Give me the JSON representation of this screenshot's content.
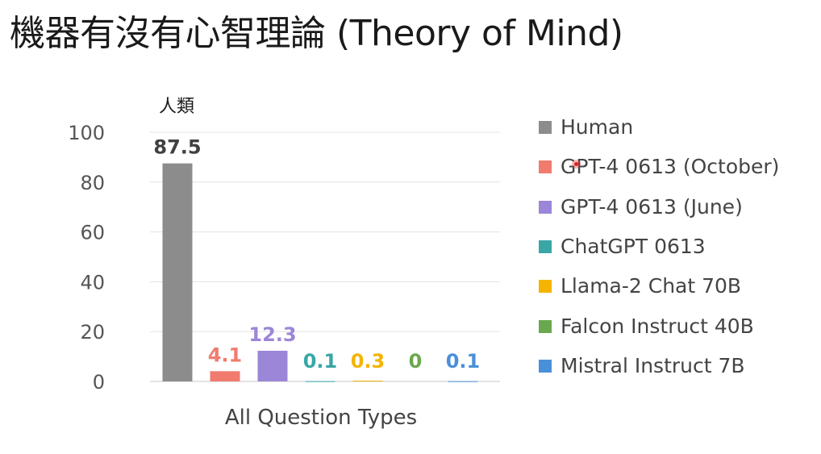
{
  "slide": {
    "title": "機器有沒有心智理論 (Theory of Mind)",
    "annotation": "人類"
  },
  "chart_data": {
    "type": "bar",
    "categories": [
      "All Question Types"
    ],
    "xlabel": "All Question Types",
    "ylabel": "",
    "ylim": [
      0,
      100
    ],
    "yticks": [
      0,
      20,
      40,
      60,
      80,
      100
    ],
    "grid": true,
    "legend_position": "right",
    "series": [
      {
        "name": "Human",
        "values": [
          87.5
        ],
        "label": "87.5",
        "color": "#8c8c8c",
        "label_color": "#404040"
      },
      {
        "name": "GPT-4 0613 (October)",
        "values": [
          4.1
        ],
        "label": "4.1",
        "color": "#f07b6e",
        "label_color": "#f07b6e"
      },
      {
        "name": "GPT-4 0613 (June)",
        "values": [
          12.3
        ],
        "label": "12.3",
        "color": "#9b86d8",
        "label_color": "#9b86d8"
      },
      {
        "name": "ChatGPT 0613",
        "values": [
          0.1
        ],
        "label": "0.1",
        "color": "#3aa6a6",
        "label_color": "#3aa6a6"
      },
      {
        "name": "Llama-2 Chat 70B",
        "values": [
          0.3
        ],
        "label": "0.3",
        "color": "#f4b400",
        "label_color": "#f4b400"
      },
      {
        "name": "Falcon Instruct 40B",
        "values": [
          0
        ],
        "label": "0",
        "color": "#6aa84f",
        "label_color": "#6aa84f"
      },
      {
        "name": "Mistral Instruct 7B",
        "values": [
          0.1
        ],
        "label": "0.1",
        "color": "#4a90d9",
        "label_color": "#4a90d9"
      }
    ]
  }
}
